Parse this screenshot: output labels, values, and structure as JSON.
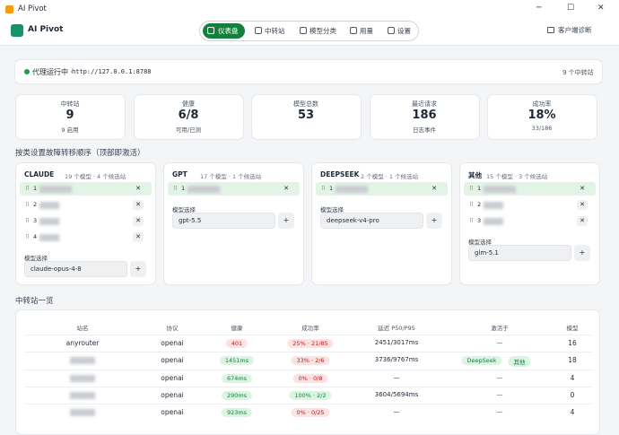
{
  "window": {
    "title": "AI Pivot"
  },
  "header": {
    "app_name": "AI Pivot",
    "nav": [
      "仪表盘",
      "中转站",
      "模型分类",
      "用量",
      "设置"
    ],
    "active_nav": 0,
    "diagnose": "客户端诊断"
  },
  "status": {
    "label": "代理运行中 ·",
    "url": "http://127.0.0.1:8788",
    "relays": "9 个中转站"
  },
  "stats": [
    {
      "label": "中转站",
      "value": "9",
      "sub": "9 启用"
    },
    {
      "label": "健康",
      "value": "6/8",
      "sub": "可用/已测"
    },
    {
      "label": "模型总数",
      "value": "53"
    },
    {
      "label": "最近请求",
      "value": "186",
      "sub": "日志事件"
    },
    {
      "label": "成功率",
      "value": "18%",
      "sub": "33/186"
    }
  ],
  "failover": {
    "title": "按类设置故障转移顺序（顶部即激活）",
    "groups": [
      {
        "name": "CLAUDE",
        "meta": "19 个模型 · 4 个候选站",
        "candidates": [
          "1",
          "2",
          "3",
          "4"
        ],
        "model_label": "模型选择",
        "model": "claude-opus-4-8"
      },
      {
        "name": "GPT",
        "meta": "17 个模型 · 1 个候选站",
        "candidates": [
          "1"
        ],
        "model_label": "模型选择",
        "model": "gpt-5.5"
      },
      {
        "name": "DEEPSEEK",
        "meta": "2 个模型 · 1 个候选站",
        "candidates": [
          "1"
        ],
        "model_label": "模型选择",
        "model": "deepseek-v4-pro"
      },
      {
        "name": "其他",
        "meta": "15 个模型 · 3 个候选站",
        "candidates": [
          "1",
          "2",
          "3"
        ],
        "model_label": "模型选择",
        "model": "glm-5.1"
      }
    ]
  },
  "table": {
    "title": "中转站一览",
    "headers": [
      "站名",
      "协议",
      "健康",
      "成功率",
      "延迟 P50/P95",
      "激活于",
      "模型"
    ],
    "rows": [
      {
        "name": "anyrouter",
        "protocol": "openai",
        "health": "401",
        "health_color": "red",
        "success": "25% · 21/85",
        "success_color": "red",
        "latency": "2451/3017ms",
        "active_on": "—",
        "models": "16"
      },
      {
        "name": null,
        "protocol": "openai",
        "health": "1451ms",
        "health_color": "green",
        "success": "33% · 2/6",
        "success_color": "red",
        "latency": "3736/9767ms",
        "active_on": [
          "DeepSeek",
          "其他"
        ],
        "models": "18"
      },
      {
        "name": null,
        "protocol": "openai",
        "health": "674ms",
        "health_color": "green",
        "success": "0% · 0/8",
        "success_color": "red",
        "latency": "—",
        "active_on": "—",
        "models": "4"
      },
      {
        "name": null,
        "protocol": "openai",
        "health": "290ms",
        "health_color": "green",
        "success": "100% · 2/2",
        "success_color": "green",
        "latency": "3604/5694ms",
        "active_on": "—",
        "models": "0"
      },
      {
        "name": null,
        "protocol": "openai",
        "health": "923ms",
        "health_color": "green",
        "success": "0% · 0/25",
        "success_color": "red",
        "latency": "—",
        "active_on": "—",
        "models": "4"
      }
    ]
  }
}
